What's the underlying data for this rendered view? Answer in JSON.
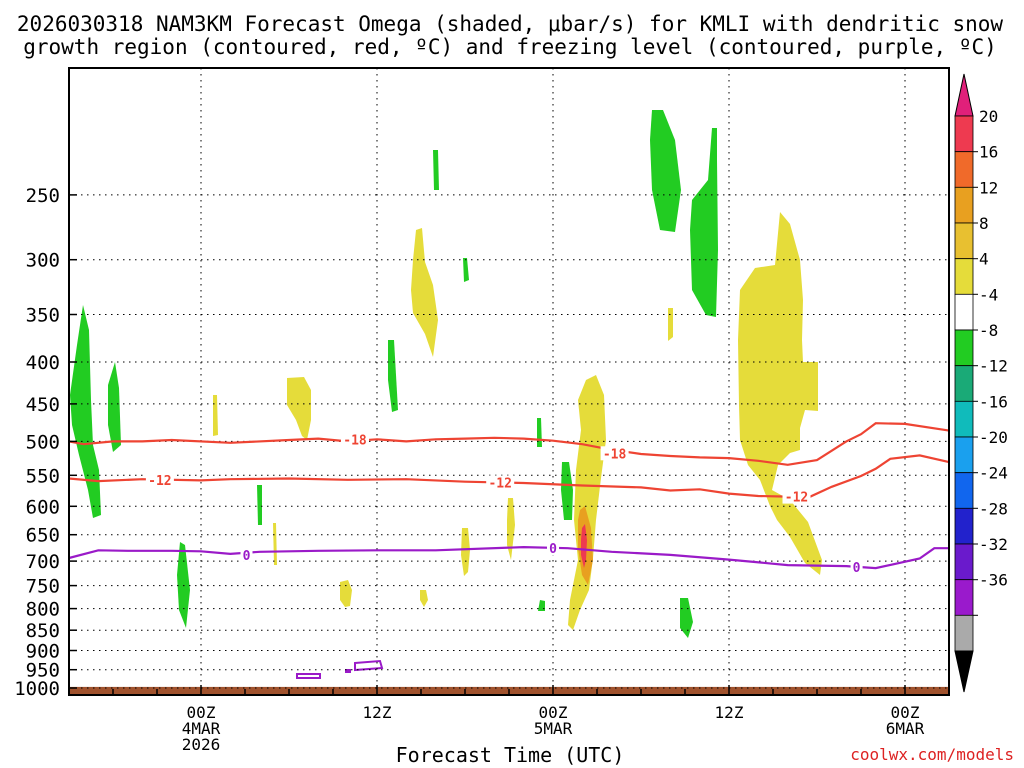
{
  "chart_data": {
    "type": "heatmap",
    "title_line1": "2026030318 NAM3KM Forecast Omega (shaded, μbar/s) for KMLI with dendritic snow",
    "title_line2": "growth region (contoured, red, ºC) and freezing level (contoured, purple, ºC)",
    "xlabel": "Forecast Time (UTC)",
    "ylabel": "",
    "credit": "coolwx.com/models",
    "x_range_hours": [
      -3.0,
      57.0
    ],
    "y_range_hpa": [
      175,
      1020
    ],
    "y_ticks": [
      250,
      300,
      350,
      400,
      450,
      500,
      550,
      600,
      650,
      700,
      750,
      800,
      850,
      900,
      950,
      1000
    ],
    "x_ticks": [
      {
        "hour": 6,
        "lines": [
          "00Z",
          "4MAR",
          "2026"
        ]
      },
      {
        "hour": 18,
        "lines": [
          "12Z"
        ]
      },
      {
        "hour": 30,
        "lines": [
          "00Z",
          "5MAR"
        ]
      },
      {
        "hour": 42,
        "lines": [
          "12Z"
        ]
      },
      {
        "hour": 54,
        "lines": [
          "00Z",
          "6MAR"
        ]
      }
    ],
    "colorbar": {
      "labels": [
        "20",
        "16",
        "12",
        "8",
        "4",
        "-4",
        "-8",
        "-12",
        "-16",
        "-20",
        "-24",
        "-28",
        "-32",
        "-36"
      ],
      "colors": [
        "#ee3a50",
        "#f06a2a",
        "#e8a020",
        "#e8c030",
        "#e5dc3a",
        "#ffffff",
        "#22cc22",
        "#1aaa77",
        "#10bbbb",
        "#1aa0ee",
        "#1166ee",
        "#2222cc",
        "#6a1acc",
        "#9a1acc",
        "#aaaaaa"
      ],
      "top_arrow_color": "#e0207a",
      "bottom_arrow_color": "#000000"
    },
    "series": [
      {
        "name": "-18 isotherm",
        "color": "#ee4433",
        "label": "-18",
        "points": [
          [
            -3,
            500
          ],
          [
            -2,
            504
          ],
          [
            0,
            500
          ],
          [
            2,
            500
          ],
          [
            4,
            498
          ],
          [
            8,
            502
          ],
          [
            12,
            498
          ],
          [
            14,
            496
          ],
          [
            16,
            500
          ],
          [
            18,
            497
          ],
          [
            20,
            500
          ],
          [
            22,
            497
          ],
          [
            24,
            496
          ],
          [
            26,
            495
          ],
          [
            28,
            496
          ],
          [
            30,
            499
          ],
          [
            32,
            504
          ],
          [
            34,
            512
          ],
          [
            36,
            518
          ],
          [
            38,
            521
          ],
          [
            40,
            523
          ],
          [
            42,
            524
          ],
          [
            44,
            528
          ],
          [
            46,
            534
          ],
          [
            48,
            527
          ],
          [
            50,
            500
          ],
          [
            51,
            490
          ],
          [
            52,
            475
          ],
          [
            54,
            476
          ],
          [
            57,
            485
          ]
        ],
        "label_points": [
          [
            16.5,
            497
          ],
          [
            34.2,
            517
          ]
        ]
      },
      {
        "name": "-12 isotherm",
        "color": "#ee4433",
        "label": "-12",
        "points": [
          [
            -3,
            555
          ],
          [
            -1,
            559
          ],
          [
            2,
            556
          ],
          [
            6,
            558
          ],
          [
            8,
            556
          ],
          [
            12,
            555
          ],
          [
            16,
            557
          ],
          [
            20,
            556
          ],
          [
            24,
            560
          ],
          [
            28,
            562
          ],
          [
            32,
            566
          ],
          [
            36,
            569
          ],
          [
            38,
            574
          ],
          [
            40,
            572
          ],
          [
            42,
            579
          ],
          [
            44,
            583
          ],
          [
            46,
            584
          ],
          [
            47,
            590
          ],
          [
            49,
            568
          ],
          [
            51,
            551
          ],
          [
            52,
            540
          ],
          [
            53,
            525
          ],
          [
            55,
            520
          ],
          [
            57,
            530
          ]
        ],
        "label_points": [
          [
            3.2,
            557
          ],
          [
            26.4,
            561
          ],
          [
            46.6,
            584
          ]
        ]
      },
      {
        "name": "0 isotherm (freezing level)",
        "color": "#9a1ac8",
        "label": "0",
        "points": [
          [
            -3,
            694
          ],
          [
            -1,
            679
          ],
          [
            1,
            680
          ],
          [
            4,
            680
          ],
          [
            6,
            681
          ],
          [
            8,
            686
          ],
          [
            10,
            682
          ],
          [
            14,
            680
          ],
          [
            18,
            679
          ],
          [
            22,
            679
          ],
          [
            28,
            673
          ],
          [
            31,
            675
          ],
          [
            34,
            682
          ],
          [
            38,
            688
          ],
          [
            42,
            697
          ],
          [
            46,
            708
          ],
          [
            50,
            710
          ],
          [
            52,
            714
          ],
          [
            55,
            695
          ],
          [
            56,
            675
          ],
          [
            57,
            675
          ]
        ],
        "label_points": [
          [
            9.1,
            688
          ],
          [
            30.0,
            675
          ],
          [
            50.7,
            712
          ]
        ]
      }
    ],
    "features": [
      {
        "name": "ground",
        "color": "#a0522d",
        "t_start": -3,
        "t_end": 57,
        "p_top": 997
      }
    ]
  }
}
